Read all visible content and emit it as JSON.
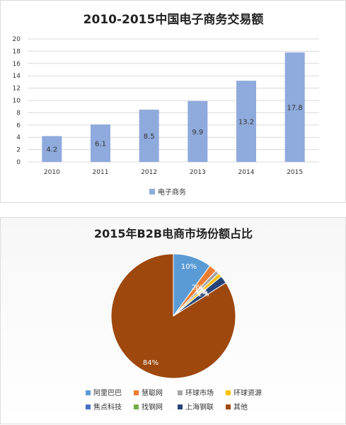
{
  "chart_data": [
    {
      "type": "bar",
      "title": "2010-2015中国电子商务交易额",
      "categories": [
        "2010",
        "2011",
        "2012",
        "2013",
        "2014",
        "2015"
      ],
      "series": [
        {
          "name": "电子商务",
          "values": [
            4.2,
            6.1,
            8.5,
            9.9,
            13.2,
            17.8
          ],
          "color": "#8faadc"
        }
      ],
      "data_labels": [
        "4.2",
        "6.1",
        "8.5",
        "9.9",
        "13.2",
        "17.8"
      ],
      "ylim": [
        0,
        20
      ],
      "yticks": [
        0,
        2,
        4,
        6,
        8,
        10,
        12,
        14,
        16,
        18,
        20
      ],
      "grid": true,
      "legend_position": "bottom"
    },
    {
      "type": "pie",
      "title": "2015年B2B电商市场份额占比",
      "categories": [
        "阿里巴巴",
        "慧聪网",
        "环球市场",
        "环球资源",
        "焦点科技",
        "找钢网",
        "上海钢联",
        "其他"
      ],
      "values": [
        10,
        2,
        1,
        1,
        0,
        0,
        2,
        84
      ],
      "data_labels": [
        "10%",
        "2%",
        "1%",
        "1%",
        "0%",
        "0%",
        "2%",
        "84%"
      ],
      "colors": [
        "#5b9bd5",
        "#ed7d31",
        "#a5a5a5",
        "#ffc000",
        "#4472c4",
        "#70ad47",
        "#264478",
        "#9e480e"
      ],
      "legend_position": "bottom"
    }
  ]
}
